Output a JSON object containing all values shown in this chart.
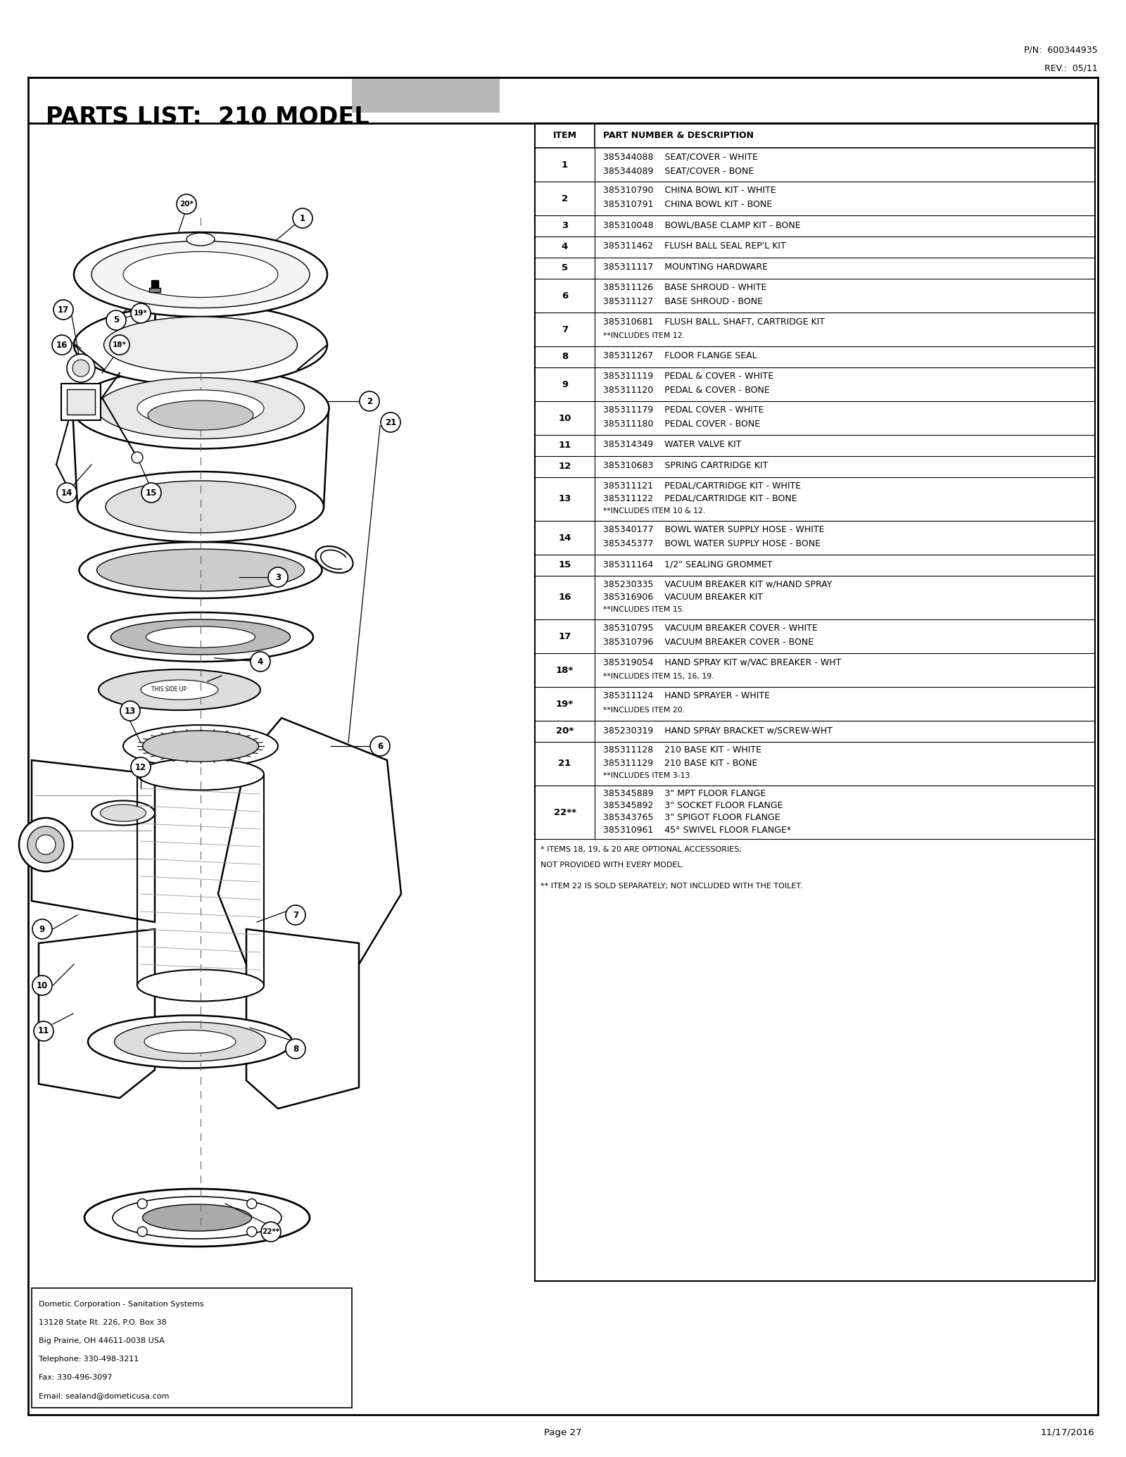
{
  "title": "PARTS LIST:  210 MODEL",
  "pn": "P/N:  600344935",
  "rev": "REV.:  05/11",
  "page": "Page 27",
  "date": "11/17/2016",
  "contact": [
    "Dometic Corporation - Sanitation Systems",
    "13128 State Rt. 226, P.O. Box 38",
    "Big Prairie, OH 44611-0038 USA",
    "Telephone: 330-498-3211",
    "Fax: 330-496-3097",
    "Email: sealand@dometicusa.com"
  ],
  "parts": [
    {
      "item": "1",
      "lines": [
        "385344088    SEAT/COVER - WHITE",
        "385344089    SEAT/COVER - BONE"
      ]
    },
    {
      "item": "2",
      "lines": [
        "385310790    CHINA BOWL KIT - WHITE",
        "385310791    CHINA BOWL KIT - BONE"
      ]
    },
    {
      "item": "3",
      "lines": [
        "385310048    BOWL/BASE CLAMP KIT - BONE"
      ]
    },
    {
      "item": "4",
      "lines": [
        "385311462    FLUSH BALL SEAL REP'L KIT"
      ]
    },
    {
      "item": "5",
      "lines": [
        "385311117    MOUNTING HARDWARE"
      ]
    },
    {
      "item": "6",
      "lines": [
        "385311126    BASE SHROUD - WHITE",
        "385311127    BASE SHROUD - BONE"
      ]
    },
    {
      "item": "7",
      "lines": [
        "385310681    FLUSH BALL, SHAFT, CARTRIDGE KIT",
        "**INCLUDES ITEM 12."
      ]
    },
    {
      "item": "8",
      "lines": [
        "385311267    FLOOR FLANGE SEAL"
      ]
    },
    {
      "item": "9",
      "lines": [
        "385311119    PEDAL & COVER - WHITE",
        "385311120    PEDAL & COVER - BONE"
      ]
    },
    {
      "item": "10",
      "lines": [
        "385311179    PEDAL COVER - WHITE",
        "385311180    PEDAL COVER - BONE"
      ]
    },
    {
      "item": "11",
      "lines": [
        "385314349    WATER VALVE KIT"
      ]
    },
    {
      "item": "12",
      "lines": [
        "385310683    SPRING CARTRIDGE KIT"
      ]
    },
    {
      "item": "13",
      "lines": [
        "385311121    PEDAL/CARTRIDGE KIT - WHITE",
        "385311122    PEDAL/CARTRIDGE KIT - BONE",
        "**INCLUDES ITEM 10 & 12."
      ]
    },
    {
      "item": "14",
      "lines": [
        "385340177    BOWL WATER SUPPLY HOSE - WHITE",
        "385345377    BOWL WATER SUPPLY HOSE - BONE"
      ]
    },
    {
      "item": "15",
      "lines": [
        "385311164    1/2\" SEALING GROMMET"
      ]
    },
    {
      "item": "16",
      "lines": [
        "385230335    VACUUM BREAKER KIT w/HAND SPRAY",
        "385316906    VACUUM BREAKER KIT",
        "**INCLUDES ITEM 15."
      ]
    },
    {
      "item": "17",
      "lines": [
        "385310795    VACUUM BREAKER COVER - WHITE",
        "385310796    VACUUM BREAKER COVER - BONE"
      ]
    },
    {
      "item": "18*",
      "lines": [
        "385319054    HAND SPRAY KIT w/VAC BREAKER - WHT",
        "**INCLUDES ITEM 15, 16, 19."
      ]
    },
    {
      "item": "19*",
      "lines": [
        "385311124    HAND SPRAYER - WHITE",
        "**INCLUDES ITEM 20."
      ]
    },
    {
      "item": "20*",
      "lines": [
        "385230319    HAND SPRAY BRACKET w/SCREW-WHT"
      ]
    },
    {
      "item": "21",
      "lines": [
        "385311128    210 BASE KIT - WHITE",
        "385311129    210 BASE KIT - BONE",
        "**INCLUDES ITEM 3-13."
      ]
    },
    {
      "item": "22**",
      "lines": [
        "385345889    3\" MPT FLOOR FLANGE",
        "385345892    3\" SOCKET FLOOR FLANGE",
        "385343765    3\" SPIGOT FLOOR FLANGE",
        "385310961    45° SWIVEL FLOOR FLANGE*"
      ]
    }
  ],
  "footnotes": [
    "* ITEMS 18, 19, & 20 ARE OPTIONAL ACCESSORIES;",
    "NOT PROVIDED WITH EVERY MODEL.",
    "",
    "** ITEM 22 IS SOLD SEPARATELY; NOT INCLUDED WITH THE TOILET."
  ],
  "bg_color": "#ffffff"
}
